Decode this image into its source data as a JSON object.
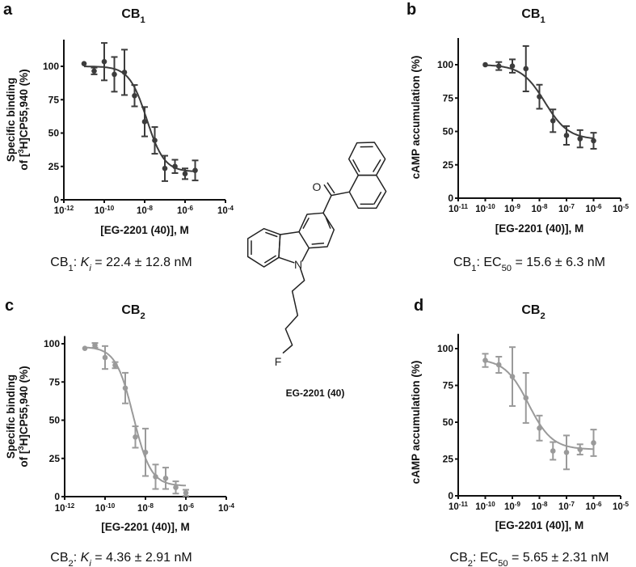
{
  "compound_label": "EG-2201 (40)",
  "molecule_atoms": {
    "oxygen": "O",
    "nitrogen": "N",
    "fluorine": "F"
  },
  "chart_data": [
    {
      "panel": "a",
      "type": "scatter",
      "title": {
        "main": "CB",
        "sub": "1"
      },
      "ylabel_lines": [
        [
          {
            "t": "Specific binding"
          }
        ],
        [
          {
            "t": "of ["
          },
          {
            "t": "3",
            "sup": true
          },
          {
            "t": "H]CP55,940 (%)"
          }
        ]
      ],
      "xlabel": "[EG-2201 (40)], M",
      "xscale": "log10",
      "xlim_exp": [
        -12,
        -4
      ],
      "xticks_exp": [
        -12,
        -10,
        -8,
        -6,
        -4
      ],
      "ylim": [
        0,
        120
      ],
      "yticks": [
        0,
        25,
        50,
        75,
        100
      ],
      "color": "#3c3c3c",
      "log_x": [
        -11,
        -10.5,
        -10,
        -9.5,
        -9,
        -8.5,
        -8,
        -7.5,
        -7,
        -6.5,
        -6,
        -5.5
      ],
      "y": [
        102,
        96.5,
        103.5,
        94,
        95.5,
        78,
        58.5,
        44.5,
        23.5,
        25,
        19.5,
        22
      ],
      "err": [
        0,
        2.5,
        14,
        13,
        17,
        8,
        11,
        10,
        9.5,
        5,
        4,
        7.5
      ],
      "fit": {
        "top": 100,
        "bottom": 21,
        "log_ec50": -7.9
      },
      "caption": [
        {
          "t": "CB"
        },
        {
          "t": "1",
          "sub": true
        },
        {
          "t": ": "
        },
        {
          "t": "K",
          "it": true
        },
        {
          "t": "i",
          "sub": true,
          "it": true
        },
        {
          "t": " = 22.4 ± 12.8 nM"
        }
      ]
    },
    {
      "panel": "b",
      "type": "scatter",
      "title": {
        "main": "CB",
        "sub": "1"
      },
      "ylabel_lines": [
        [
          {
            "t": "cAMP accumulation (%)"
          }
        ]
      ],
      "xlabel": "[EG-2201 (40)], M",
      "xscale": "log10",
      "xlim_exp": [
        -11,
        -5
      ],
      "xticks_exp": [
        -11,
        -10,
        -9,
        -8,
        -7,
        -6,
        -5
      ],
      "ylim": [
        0,
        120
      ],
      "yticks": [
        0,
        25,
        50,
        75,
        100
      ],
      "color": "#3c3c3c",
      "log_x": [
        -10,
        -9.5,
        -9,
        -8.5,
        -8,
        -7.5,
        -7,
        -6.5,
        -6
      ],
      "y": [
        100,
        99,
        99,
        97,
        76,
        58,
        47,
        44.5,
        43
      ],
      "err": [
        0,
        3,
        5,
        17,
        9,
        8.5,
        7,
        6.5,
        6
      ],
      "fit": {
        "top": 100,
        "bottom": 44,
        "log_ec50": -7.8
      },
      "caption": [
        {
          "t": "CB"
        },
        {
          "t": "1",
          "sub": true
        },
        {
          "t": ": EC"
        },
        {
          "t": "50",
          "sub": true
        },
        {
          "t": " = 15.6 ± 6.3 nM"
        }
      ]
    },
    {
      "panel": "c",
      "type": "scatter",
      "title": {
        "main": "CB",
        "sub": "2"
      },
      "ylabel_lines": [
        [
          {
            "t": "Specific binding"
          }
        ],
        [
          {
            "t": "of ["
          },
          {
            "t": "3",
            "sup": true
          },
          {
            "t": "H]CP55,940 (%)"
          }
        ]
      ],
      "xlabel": "[EG-2201 (40)], M",
      "xscale": "log10",
      "xlim_exp": [
        -12,
        -4
      ],
      "xticks_exp": [
        -12,
        -10,
        -8,
        -6,
        -4
      ],
      "ylim": [
        0,
        105
      ],
      "yticks": [
        0,
        25,
        50,
        75,
        100
      ],
      "color": "#9a9a9a",
      "log_x": [
        -11,
        -10.5,
        -10,
        -9.5,
        -9,
        -8.5,
        -8,
        -7.5,
        -7,
        -6.5,
        -6
      ],
      "y": [
        97,
        99,
        91,
        86,
        71,
        39,
        29,
        13,
        12,
        6,
        2.5
      ],
      "err": [
        0,
        1.5,
        7.5,
        2,
        10,
        7,
        15.5,
        8,
        7,
        4,
        2
      ],
      "fit": {
        "top": 98,
        "bottom": 7,
        "log_ec50": -8.6
      },
      "caption": [
        {
          "t": "CB"
        },
        {
          "t": "2",
          "sub": true
        },
        {
          "t": ": "
        },
        {
          "t": "K",
          "it": true
        },
        {
          "t": "i",
          "sub": true,
          "it": true
        },
        {
          "t": " = 4.36 ± 2.91 nM"
        }
      ]
    },
    {
      "panel": "d",
      "type": "scatter",
      "title": {
        "main": "CB",
        "sub": "2"
      },
      "ylabel_lines": [
        [
          {
            "t": "cAMP accumulation (%)"
          }
        ]
      ],
      "xlabel": "[EG-2201 (40)], M",
      "xscale": "log10",
      "xlim_exp": [
        -11,
        -5
      ],
      "xticks_exp": [
        -11,
        -10,
        -9,
        -8,
        -7,
        -6,
        -5
      ],
      "ylim": [
        0,
        110
      ],
      "yticks": [
        0,
        25,
        50,
        75,
        100
      ],
      "color": "#9a9a9a",
      "log_x": [
        -10,
        -9.5,
        -9,
        -8.5,
        -8,
        -7.5,
        -7,
        -6.5,
        -6
      ],
      "y": [
        92,
        89,
        81,
        66.5,
        46,
        30.5,
        29.5,
        31.5,
        36
      ],
      "err": [
        4.5,
        5.5,
        20,
        17,
        8.5,
        6,
        11.5,
        3.5,
        9
      ],
      "fit": {
        "top": 93,
        "bottom": 31.5,
        "log_ec50": -8.4
      },
      "caption": [
        {
          "t": "CB"
        },
        {
          "t": "2",
          "sub": true
        },
        {
          "t": ": EC"
        },
        {
          "t": "50",
          "sub": true
        },
        {
          "t": " = 5.65 ± 2.31 nM"
        }
      ]
    }
  ]
}
